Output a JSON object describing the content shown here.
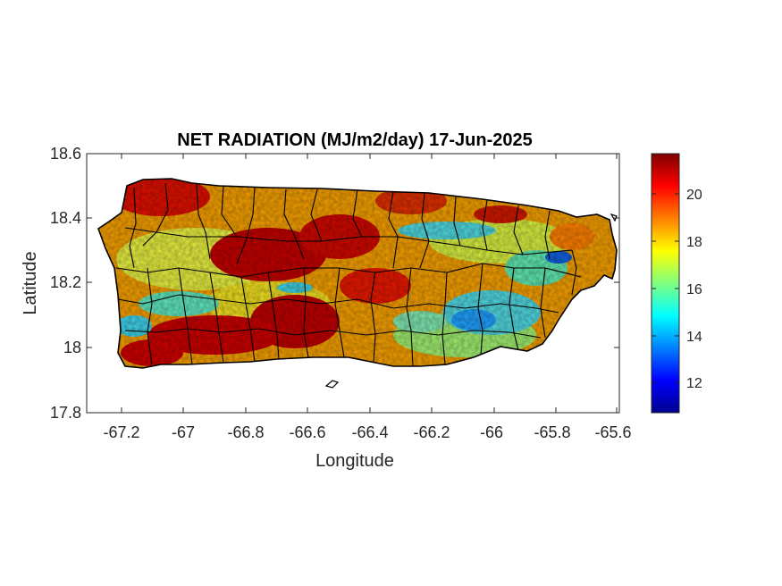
{
  "title": "NET RADIATION (MJ/m2/day) 17-Jun-2025",
  "xlabel": "Longitude",
  "ylabel": "Latitude",
  "x_ticks": [
    "-67.2",
    "-67",
    "-66.8",
    "-66.6",
    "-66.4",
    "-66.2",
    "-66",
    "-65.8",
    "-65.6"
  ],
  "y_ticks": [
    "18.6",
    "18.4",
    "18.2",
    "18",
    "17.8"
  ],
  "colorbar": {
    "colormap": "jet",
    "range": [
      10.8,
      21.8
    ],
    "ticks": [
      "20",
      "18",
      "16",
      "14",
      "12"
    ]
  },
  "map": {
    "lon_range": [
      -67.3,
      -65.59
    ],
    "lat_range": [
      17.8,
      18.6
    ],
    "region": "Puerto Rico",
    "colors": {
      "border": "#000000",
      "axis": "#262626",
      "background": "#ffffff"
    }
  }
}
